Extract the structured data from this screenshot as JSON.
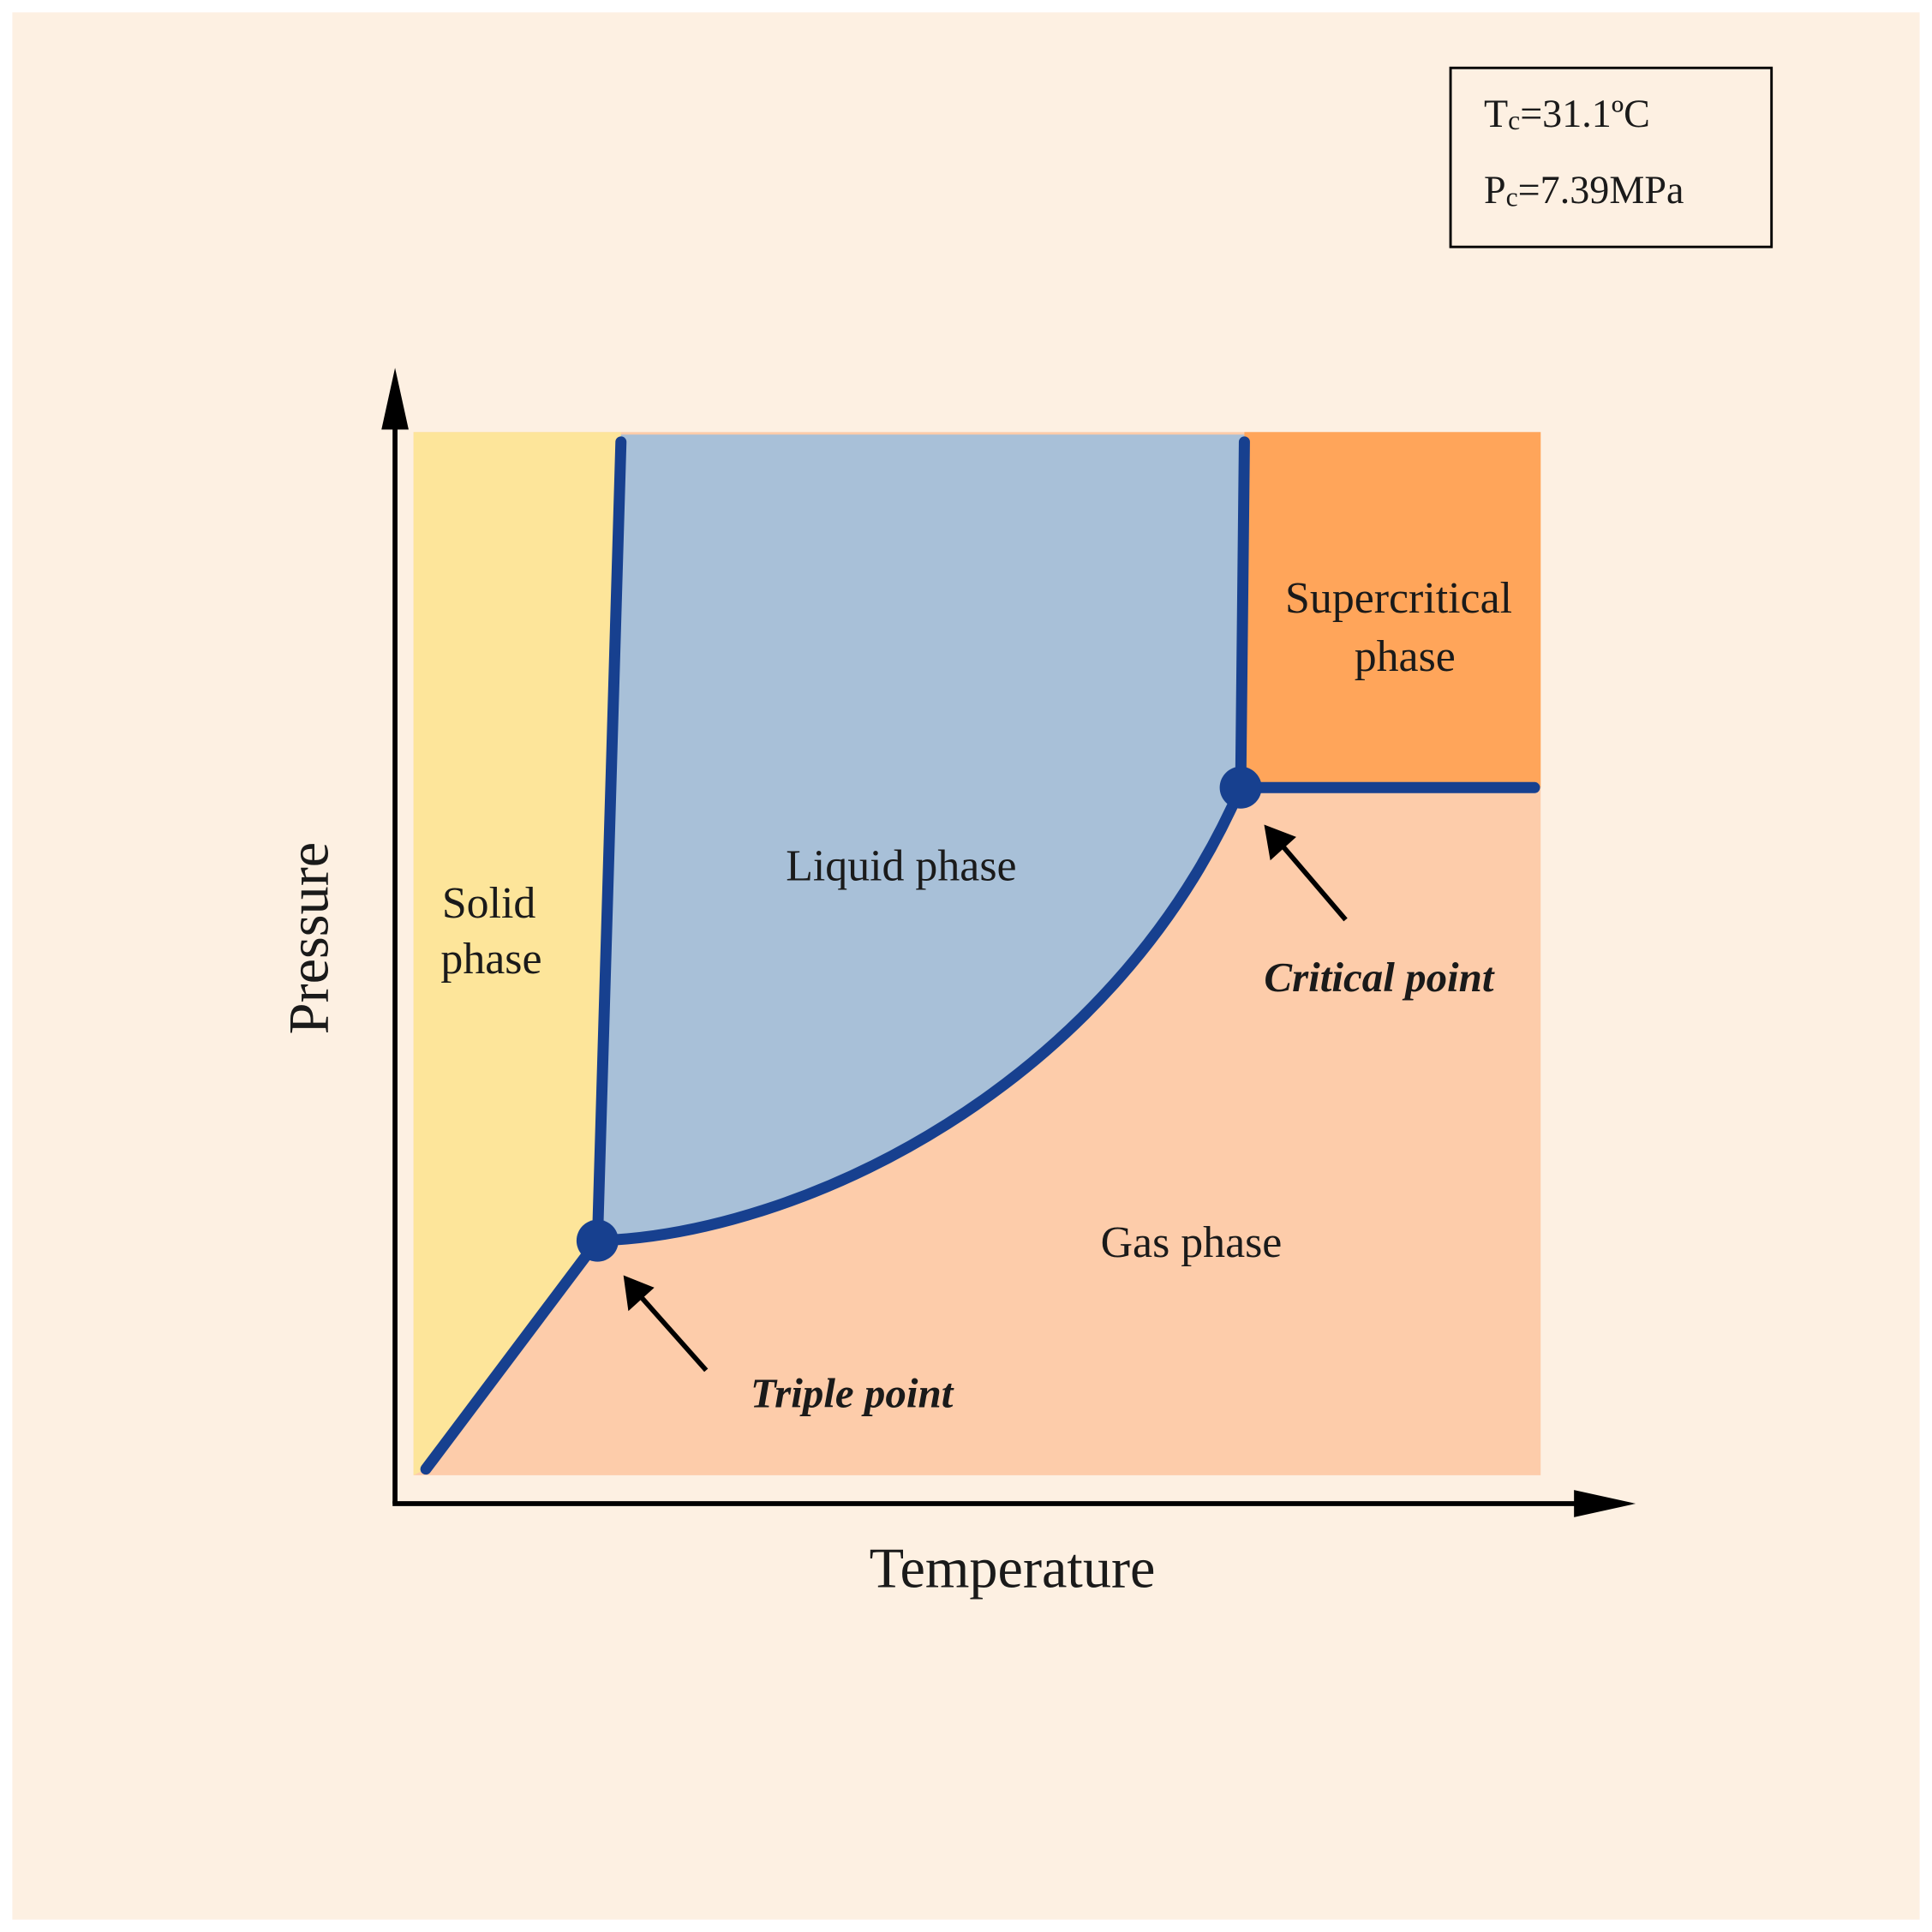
{
  "critical_box": {
    "lines": [
      {
        "symbol": "T",
        "subscript": "c",
        "value": "=31.1ºC"
      },
      {
        "symbol": "P",
        "subscript": "c",
        "value": "=7.39MPa"
      }
    ]
  },
  "axes": {
    "y_label": "Pressure",
    "x_label": "Temperature"
  },
  "regions": {
    "solid": [
      "Solid",
      "phase"
    ],
    "liquid": "Liquid phase",
    "supercritical": [
      "Supercritical",
      "phase"
    ],
    "gas": "Gas phase"
  },
  "annotations": {
    "triple_point": "Triple point",
    "critical_point": "Critical point"
  }
}
